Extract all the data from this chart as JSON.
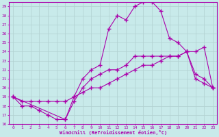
{
  "xlabel": "Windchill (Refroidissement éolien,°C)",
  "bg_color": "#c8eaea",
  "line_color": "#aa00aa",
  "xlim": [
    -0.5,
    23.5
  ],
  "ylim": [
    16,
    29.5
  ],
  "xticks": [
    0,
    1,
    2,
    3,
    4,
    5,
    6,
    7,
    8,
    9,
    10,
    11,
    12,
    13,
    14,
    15,
    16,
    17,
    18,
    19,
    20,
    21,
    22,
    23
  ],
  "yticks": [
    16,
    17,
    18,
    19,
    20,
    21,
    22,
    23,
    24,
    25,
    26,
    27,
    28,
    29
  ],
  "line_straight_x": [
    0,
    1,
    2,
    3,
    4,
    5,
    6,
    7,
    8,
    9,
    10,
    11,
    12,
    13,
    14,
    15,
    16,
    17,
    18,
    19,
    20,
    21,
    22,
    23
  ],
  "line_straight_y": [
    19.0,
    18.5,
    18.5,
    18.5,
    18.5,
    18.5,
    18.5,
    19.0,
    19.5,
    20.0,
    20.0,
    20.5,
    21.0,
    21.5,
    22.0,
    22.5,
    22.5,
    23.0,
    23.5,
    23.5,
    24.0,
    24.0,
    24.5,
    20.0
  ],
  "line_dip_x": [
    0,
    1,
    2,
    3,
    4,
    5,
    6,
    7,
    8,
    9,
    10,
    11,
    12,
    13,
    14,
    15,
    16,
    17,
    18,
    19,
    20,
    21,
    22,
    23
  ],
  "line_dip_y": [
    19.0,
    18.0,
    18.0,
    17.5,
    17.0,
    16.5,
    16.5,
    18.5,
    20.0,
    21.0,
    21.5,
    22.0,
    22.0,
    22.5,
    23.5,
    23.5,
    23.5,
    23.5,
    23.5,
    23.5,
    24.0,
    21.0,
    20.5,
    20.0
  ],
  "line_peak_x": [
    0,
    6,
    7,
    8,
    9,
    10,
    11,
    12,
    13,
    14,
    15,
    16,
    17,
    18,
    19,
    20,
    21,
    22,
    23
  ],
  "line_peak_y": [
    19.0,
    16.5,
    19.0,
    21.0,
    22.0,
    22.5,
    26.5,
    28.0,
    27.5,
    29.0,
    29.5,
    29.5,
    28.5,
    25.5,
    25.0,
    24.0,
    21.5,
    21.0,
    20.0
  ]
}
